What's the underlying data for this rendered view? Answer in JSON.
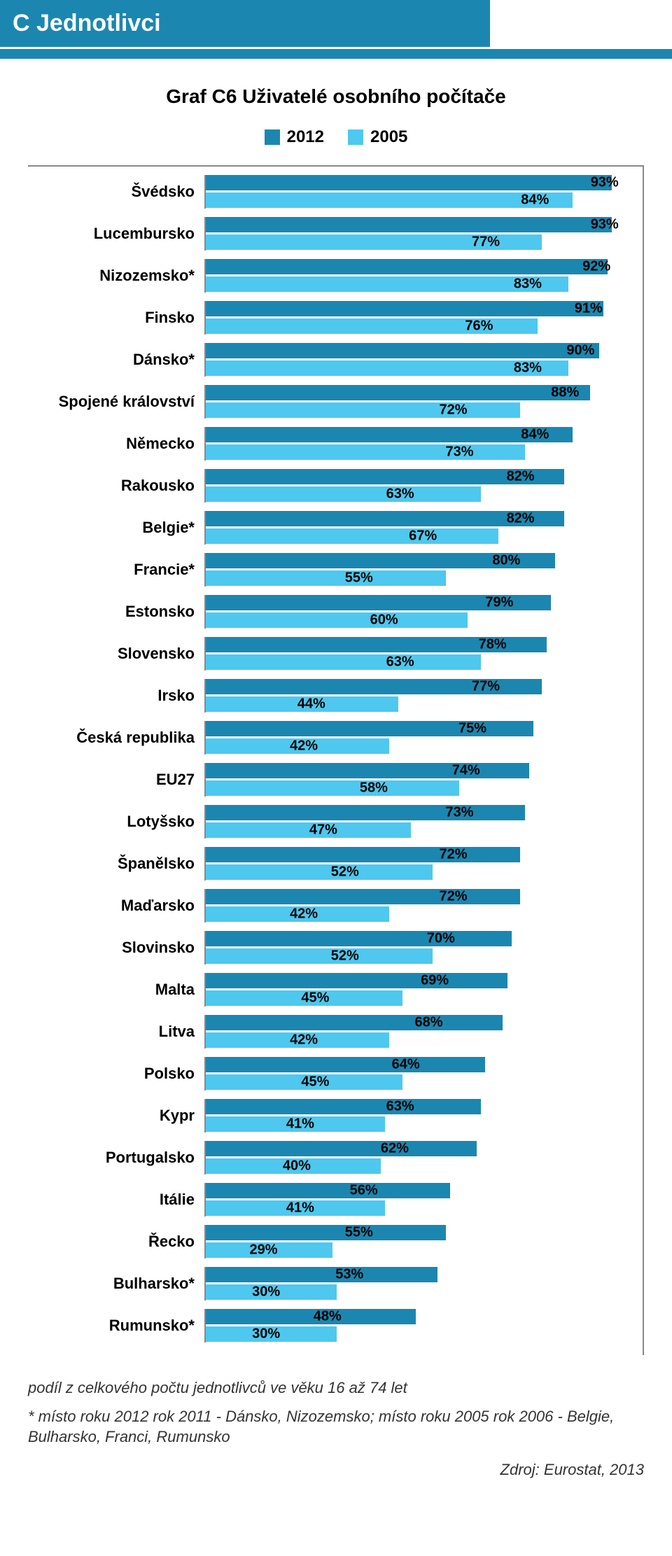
{
  "header": {
    "label": "C  Jednotlivci",
    "bg_color": "#1b87b0",
    "text_color": "#ffffff"
  },
  "chart": {
    "type": "bar",
    "title": "Graf C6 Uživatelé osobního počítače",
    "title_fontsize": 28,
    "label_fontsize": 22,
    "value_fontsize": 20,
    "background_color": "#ffffff",
    "border_color": "#888888",
    "xlim": [
      0,
      100
    ],
    "legend": [
      {
        "label": "2012",
        "color": "#1b87b0"
      },
      {
        "label": "2005",
        "color": "#4ec8ee"
      }
    ],
    "series_colors": {
      "v2012": "#1b87b0",
      "v2005": "#4ec8ee"
    },
    "categories": [
      {
        "label": "Švédsko",
        "v2012": 93,
        "v2005": 84
      },
      {
        "label": "Lucembursko",
        "v2012": 93,
        "v2005": 77
      },
      {
        "label": "Nizozemsko*",
        "v2012": 92,
        "v2005": 83
      },
      {
        "label": "Finsko",
        "v2012": 91,
        "v2005": 76
      },
      {
        "label": "Dánsko*",
        "v2012": 90,
        "v2005": 83
      },
      {
        "label": "Spojené království",
        "v2012": 88,
        "v2005": 72
      },
      {
        "label": "Německo",
        "v2012": 84,
        "v2005": 73
      },
      {
        "label": "Rakousko",
        "v2012": 82,
        "v2005": 63
      },
      {
        "label": "Belgie*",
        "v2012": 82,
        "v2005": 67
      },
      {
        "label": "Francie*",
        "v2012": 80,
        "v2005": 55
      },
      {
        "label": "Estonsko",
        "v2012": 79,
        "v2005": 60
      },
      {
        "label": "Slovensko",
        "v2012": 78,
        "v2005": 63
      },
      {
        "label": "Irsko",
        "v2012": 77,
        "v2005": 44
      },
      {
        "label": "Česká republika",
        "v2012": 75,
        "v2005": 42
      },
      {
        "label": "EU27",
        "v2012": 74,
        "v2005": 58
      },
      {
        "label": "Lotyšsko",
        "v2012": 73,
        "v2005": 47
      },
      {
        "label": "Španělsko",
        "v2012": 72,
        "v2005": 52
      },
      {
        "label": "Maďarsko",
        "v2012": 72,
        "v2005": 42
      },
      {
        "label": "Slovinsko",
        "v2012": 70,
        "v2005": 52
      },
      {
        "label": "Malta",
        "v2012": 69,
        "v2005": 45
      },
      {
        "label": "Litva",
        "v2012": 68,
        "v2005": 42
      },
      {
        "label": "Polsko",
        "v2012": 64,
        "v2005": 45
      },
      {
        "label": "Kypr",
        "v2012": 63,
        "v2005": 41
      },
      {
        "label": "Portugalsko",
        "v2012": 62,
        "v2005": 40
      },
      {
        "label": "Itálie",
        "v2012": 56,
        "v2005": 41
      },
      {
        "label": "Řecko",
        "v2012": 55,
        "v2005": 29
      },
      {
        "label": "Bulharsko*",
        "v2012": 53,
        "v2005": 30
      },
      {
        "label": "Rumunsko*",
        "v2012": 48,
        "v2005": 30
      }
    ]
  },
  "footnotes": {
    "fn1": "podíl z celkového počtu jednotlivců ve věku 16 až 74 let",
    "fn2": "* místo roku 2012 rok 2011 - Dánsko, Nizozemsko; místo roku 2005 rok 2006 - Belgie, Bulharsko, Franci, Rumunsko",
    "source": "Zdroj: Eurostat, 2013"
  }
}
